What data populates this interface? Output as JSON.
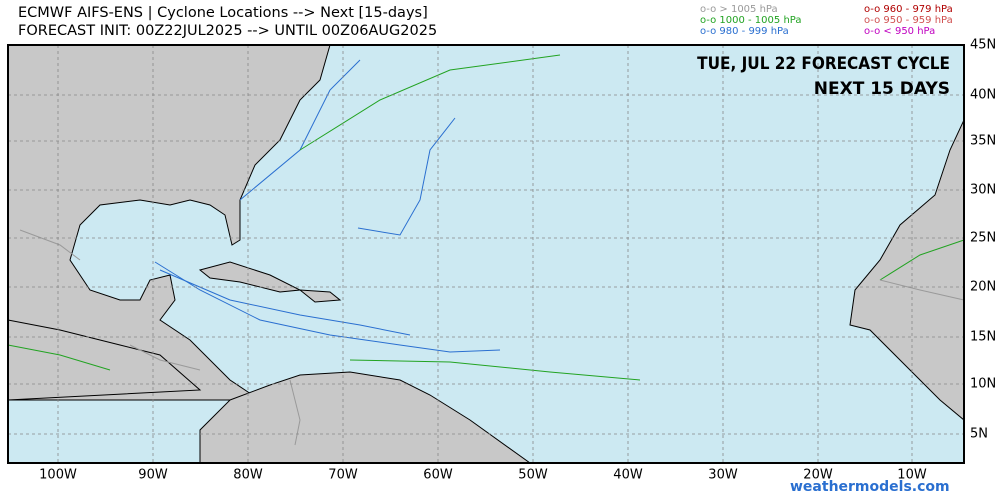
{
  "header": {
    "title_lines": [
      "ECMWF AIFS-ENS | Cyclone Locations --> Next [15-days]",
      "FORECAST INIT: 00Z22JUL2025 --> UNTIL 00Z06AUG2025"
    ]
  },
  "legend": [
    {
      "label": "o-o > 1005 hPa",
      "color": "#9a9a9a"
    },
    {
      "label": "o-o 1000 - 1005 hPa",
      "color": "#22a322"
    },
    {
      "label": "o-o 980 - 999 hPa",
      "color": "#2a6fd0"
    },
    {
      "label": "o-o 960 - 979 hPa",
      "color": "#b00000"
    },
    {
      "label": "o-o 950 - 959 hPa",
      "color": "#d05050"
    },
    {
      "label": "o-o < 950 hPa",
      "color": "#c000c0"
    }
  ],
  "overlay": [
    "TUE, JUL 22 FORECAST CYCLE",
    "NEXT 15 DAYS"
  ],
  "lon_labels": [
    "100W",
    "90W",
    "80W",
    "70W",
    "60W",
    "50W",
    "40W",
    "30W",
    "20W",
    "10W"
  ],
  "lat_labels": [
    "45N",
    "40N",
    "35N",
    "30N",
    "25N",
    "20N",
    "15N",
    "10N",
    "5N"
  ],
  "watermark": "weathermodels.com"
}
